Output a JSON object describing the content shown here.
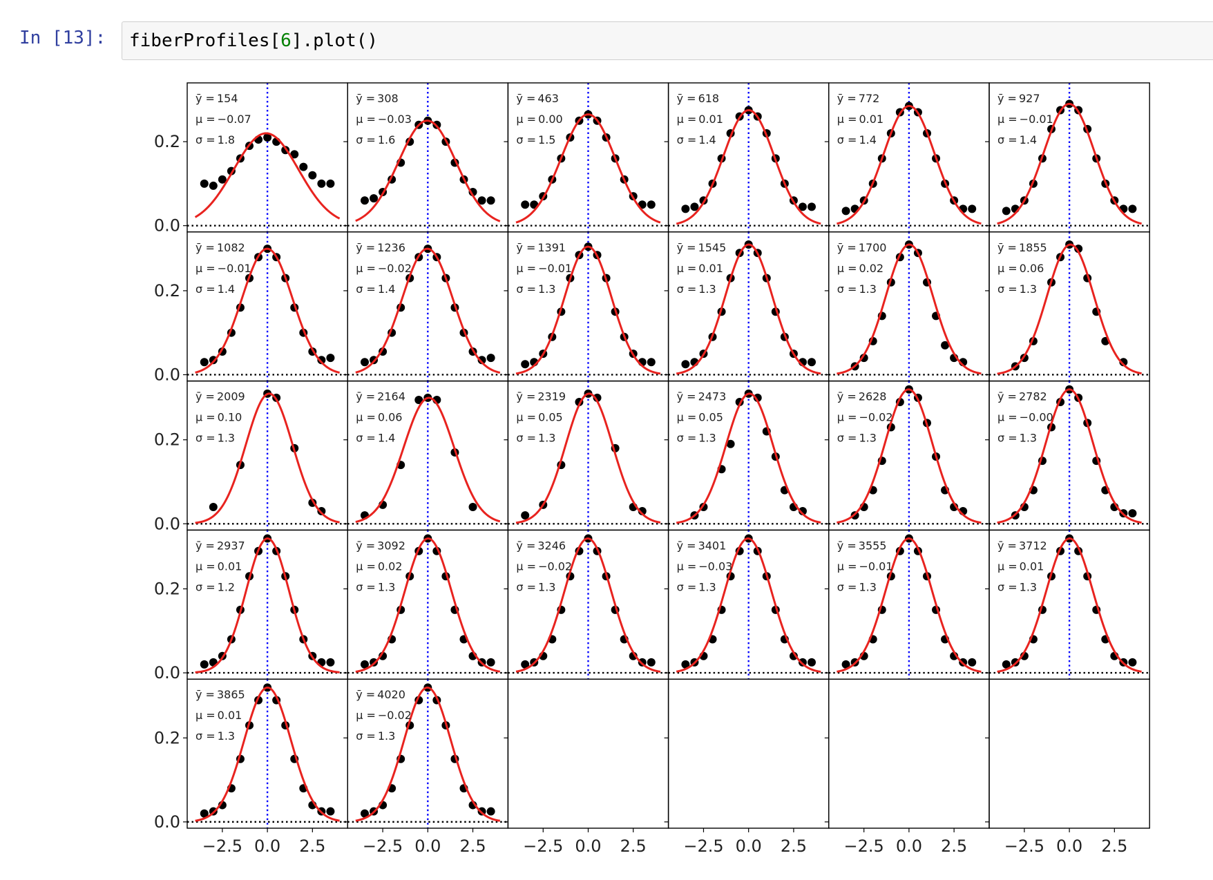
{
  "cell": {
    "prompt": "In [13]:",
    "code": [
      "fiberProfiles[",
      "6",
      "].plot()"
    ]
  },
  "chart_data": {
    "type": "profile-grid",
    "xlim": [
      -4.45,
      4.45
    ],
    "ylim": [
      -0.015,
      0.34
    ],
    "xticks": [
      {
        "value": -2.5,
        "label": "−2.5"
      },
      {
        "value": 0,
        "label": "0.0"
      },
      {
        "value": 2.5,
        "label": "2.5"
      }
    ],
    "yticks": [
      {
        "value": 0,
        "label": "0.0"
      },
      {
        "value": 0.2,
        "label": "0.2"
      }
    ],
    "center_line_x": 0,
    "baseline_y": 0,
    "annotation_prefixes": {
      "ybar": "ȳ =",
      "mu": "μ =",
      "sigma": "σ ="
    },
    "dot_color": "#000000",
    "fit_color": "#e8231f",
    "center_color": "#0000ff",
    "dot_x": [
      -3.5,
      -3,
      -2.5,
      -2,
      -1.5,
      -1,
      -0.5,
      0,
      0.5,
      1,
      1.5,
      2,
      2.5,
      3,
      3.5
    ],
    "panels": [
      {
        "ybar": 154,
        "mu": {
          "value": -0.07,
          "label": "−0.07"
        },
        "sigma": 1.8,
        "peak": 0.22,
        "dots": [
          0.1,
          0.095,
          0.11,
          0.13,
          0.16,
          0.19,
          0.205,
          0.21,
          0.2,
          0.18,
          0.17,
          0.14,
          0.12,
          0.1,
          0.1
        ]
      },
      {
        "ybar": 308,
        "mu": {
          "value": -0.03,
          "label": "−0.03"
        },
        "sigma": 1.6,
        "peak": 0.25,
        "dots": [
          0.06,
          0.065,
          0.08,
          0.11,
          0.15,
          0.2,
          0.24,
          0.25,
          0.24,
          0.2,
          0.15,
          0.11,
          0.08,
          0.06,
          0.06
        ]
      },
      {
        "ybar": 463,
        "mu": {
          "value": 0,
          "label": "0.00"
        },
        "sigma": 1.5,
        "peak": 0.265,
        "dots": [
          0.05,
          0.05,
          0.07,
          0.11,
          0.16,
          0.21,
          0.25,
          0.265,
          0.25,
          0.21,
          0.16,
          0.11,
          0.07,
          0.05,
          0.05
        ]
      },
      {
        "ybar": 618,
        "mu": {
          "value": 0.01,
          "label": "0.01"
        },
        "sigma": 1.4,
        "peak": 0.275,
        "dots": [
          0.04,
          0.045,
          0.06,
          0.1,
          0.16,
          0.22,
          0.26,
          0.275,
          0.26,
          0.22,
          0.16,
          0.1,
          0.06,
          0.045,
          0.045
        ]
      },
      {
        "ybar": 772,
        "mu": {
          "value": 0.01,
          "label": "0.01"
        },
        "sigma": 1.4,
        "peak": 0.285,
        "dots": [
          0.035,
          0.04,
          0.06,
          0.1,
          0.16,
          0.22,
          0.27,
          0.285,
          0.27,
          0.22,
          0.16,
          0.1,
          0.06,
          0.04,
          0.04
        ]
      },
      {
        "ybar": 927,
        "mu": {
          "value": -0.01,
          "label": "−0.01"
        },
        "sigma": 1.4,
        "peak": 0.29,
        "dots": [
          0.035,
          0.04,
          0.06,
          0.1,
          0.16,
          0.23,
          0.275,
          0.29,
          0.275,
          0.23,
          0.16,
          0.1,
          0.06,
          0.04,
          0.04
        ]
      },
      {
        "ybar": 1082,
        "mu": {
          "value": -0.01,
          "label": "−0.01"
        },
        "sigma": 1.4,
        "peak": 0.3,
        "dots": [
          0.03,
          0.035,
          0.055,
          0.1,
          0.16,
          0.23,
          0.28,
          0.3,
          0.28,
          0.23,
          0.16,
          0.1,
          0.055,
          0.035,
          0.04
        ]
      },
      {
        "ybar": 1236,
        "mu": {
          "value": -0.02,
          "label": "−0.02"
        },
        "sigma": 1.4,
        "peak": 0.3,
        "dots": [
          0.03,
          0.035,
          0.055,
          0.1,
          0.16,
          0.23,
          0.28,
          0.3,
          0.28,
          0.23,
          0.16,
          0.1,
          0.055,
          0.035,
          0.04
        ]
      },
      {
        "ybar": 1391,
        "mu": {
          "value": -0.01,
          "label": "−0.01"
        },
        "sigma": 1.3,
        "peak": 0.305,
        "dots": [
          0.025,
          0.03,
          0.05,
          0.09,
          0.15,
          0.23,
          0.285,
          0.305,
          0.285,
          0.23,
          0.15,
          0.09,
          0.05,
          0.03,
          0.03
        ]
      },
      {
        "ybar": 1545,
        "mu": {
          "value": 0.01,
          "label": "0.01"
        },
        "sigma": 1.3,
        "peak": 0.31,
        "dots": [
          0.025,
          0.03,
          0.05,
          0.09,
          0.15,
          0.23,
          0.29,
          0.31,
          0.29,
          0.23,
          0.15,
          0.09,
          0.05,
          0.03,
          0.03
        ]
      },
      {
        "ybar": 1700,
        "mu": {
          "value": 0.02,
          "label": "0.02"
        },
        "sigma": 1.3,
        "peak": 0.31,
        "dots": [
          null,
          0.02,
          0.04,
          0.08,
          0.14,
          0.22,
          0.28,
          0.31,
          0.29,
          0.22,
          0.14,
          0.07,
          0.04,
          0.03,
          null
        ]
      },
      {
        "ybar": 1855,
        "mu": {
          "value": 0.06,
          "label": "0.06"
        },
        "sigma": 1.3,
        "peak": 0.31,
        "dots": [
          null,
          0.02,
          0.04,
          0.08,
          null,
          0.22,
          0.28,
          0.31,
          0.3,
          0.23,
          0.15,
          0.08,
          null,
          0.03,
          null
        ]
      },
      {
        "ybar": 2009,
        "mu": {
          "value": 0.1,
          "label": "0.10"
        },
        "sigma": 1.3,
        "peak": 0.31,
        "dots": [
          null,
          0.04,
          null,
          null,
          0.14,
          null,
          null,
          0.31,
          0.3,
          null,
          0.18,
          null,
          0.05,
          0.03,
          null
        ]
      },
      {
        "ybar": 2164,
        "mu": {
          "value": 0.06,
          "label": "0.06"
        },
        "sigma": 1.4,
        "peak": 0.3,
        "dots": [
          0.02,
          null,
          0.045,
          null,
          0.14,
          null,
          0.295,
          0.3,
          0.295,
          null,
          0.17,
          null,
          0.04,
          null,
          null
        ]
      },
      {
        "ybar": 2319,
        "mu": {
          "value": 0.05,
          "label": "0.05"
        },
        "sigma": 1.3,
        "peak": 0.31,
        "dots": [
          0.02,
          null,
          0.045,
          null,
          0.14,
          null,
          0.29,
          0.31,
          0.3,
          null,
          0.18,
          null,
          0.04,
          0.03,
          null
        ]
      },
      {
        "ybar": 2473,
        "mu": {
          "value": 0.05,
          "label": "0.05"
        },
        "sigma": 1.3,
        "peak": 0.31,
        "dots": [
          null,
          0.02,
          0.04,
          null,
          0.13,
          0.19,
          0.29,
          0.31,
          0.3,
          0.22,
          0.16,
          0.08,
          0.04,
          0.03,
          null
        ]
      },
      {
        "ybar": 2628,
        "mu": {
          "value": -0.02,
          "label": "−0.02"
        },
        "sigma": 1.3,
        "peak": 0.32,
        "dots": [
          null,
          0.02,
          0.04,
          0.08,
          0.15,
          0.23,
          0.29,
          0.32,
          0.3,
          0.24,
          0.16,
          0.08,
          0.04,
          0.03,
          null
        ]
      },
      {
        "ybar": 2782,
        "mu": {
          "value": -0.0,
          "label": "−0.00"
        },
        "sigma": 1.3,
        "peak": 0.32,
        "dots": [
          null,
          0.02,
          0.04,
          0.08,
          0.15,
          0.23,
          0.29,
          0.32,
          0.3,
          0.24,
          0.15,
          0.08,
          0.04,
          0.025,
          0.025
        ]
      },
      {
        "ybar": 2937,
        "mu": {
          "value": 0.01,
          "label": "0.01"
        },
        "sigma": 1.2,
        "peak": 0.32,
        "dots": [
          0.02,
          0.025,
          0.04,
          0.08,
          0.15,
          0.23,
          0.29,
          0.32,
          0.29,
          0.23,
          0.15,
          0.08,
          0.04,
          0.025,
          0.025
        ]
      },
      {
        "ybar": 3092,
        "mu": {
          "value": 0.02,
          "label": "0.02"
        },
        "sigma": 1.3,
        "peak": 0.32,
        "dots": [
          0.02,
          0.025,
          0.04,
          0.08,
          0.15,
          0.23,
          0.29,
          0.32,
          0.29,
          0.23,
          0.15,
          0.08,
          0.04,
          0.025,
          0.025
        ]
      },
      {
        "ybar": 3246,
        "mu": {
          "value": -0.02,
          "label": "−0.02"
        },
        "sigma": 1.3,
        "peak": 0.32,
        "dots": [
          0.02,
          0.025,
          0.04,
          0.08,
          0.15,
          0.23,
          0.29,
          0.32,
          0.29,
          0.23,
          0.15,
          0.08,
          0.04,
          0.025,
          0.025
        ]
      },
      {
        "ybar": 3401,
        "mu": {
          "value": -0.03,
          "label": "−0.03"
        },
        "sigma": 1.3,
        "peak": 0.32,
        "dots": [
          0.02,
          0.025,
          0.04,
          0.08,
          0.15,
          0.23,
          0.29,
          0.32,
          0.29,
          0.23,
          0.15,
          0.08,
          0.04,
          0.025,
          0.025
        ]
      },
      {
        "ybar": 3555,
        "mu": {
          "value": -0.01,
          "label": "−0.01"
        },
        "sigma": 1.3,
        "peak": 0.32,
        "dots": [
          0.02,
          0.025,
          0.04,
          0.08,
          0.15,
          0.23,
          0.29,
          0.32,
          0.29,
          0.23,
          0.15,
          0.08,
          0.04,
          0.025,
          0.025
        ]
      },
      {
        "ybar": 3712,
        "mu": {
          "value": 0.01,
          "label": "0.01"
        },
        "sigma": 1.3,
        "peak": 0.32,
        "dots": [
          0.02,
          0.025,
          0.04,
          0.08,
          0.15,
          0.23,
          0.29,
          0.32,
          0.29,
          0.23,
          0.15,
          0.08,
          0.04,
          0.025,
          0.025
        ]
      },
      {
        "ybar": 3865,
        "mu": {
          "value": 0.01,
          "label": "0.01"
        },
        "sigma": 1.3,
        "peak": 0.32,
        "dots": [
          0.02,
          0.025,
          0.04,
          0.08,
          0.15,
          0.23,
          0.29,
          0.32,
          0.29,
          0.23,
          0.15,
          0.08,
          0.04,
          0.025,
          0.025
        ]
      },
      {
        "ybar": 4020,
        "mu": {
          "value": -0.02,
          "label": "−0.02"
        },
        "sigma": 1.3,
        "peak": 0.32,
        "dots": [
          0.02,
          0.025,
          0.04,
          0.08,
          0.15,
          0.23,
          0.29,
          0.32,
          0.29,
          0.23,
          0.15,
          0.08,
          0.04,
          0.025,
          0.025
        ]
      }
    ]
  }
}
